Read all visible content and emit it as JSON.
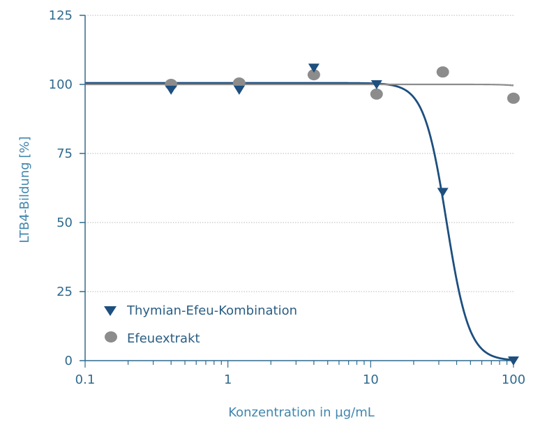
{
  "chart_data": {
    "type": "scatter",
    "x_scale": "log",
    "xlim": [
      0.1,
      100
    ],
    "ylim": [
      0,
      125
    ],
    "x_ticks": [
      0.1,
      1,
      10,
      100
    ],
    "x_tick_labels": [
      "0.1",
      "1",
      "10",
      "100"
    ],
    "y_ticks": [
      0,
      25,
      50,
      75,
      100,
      125
    ],
    "y_tick_labels": [
      "0",
      "25",
      "50",
      "75",
      "100",
      "125"
    ],
    "xlabel": "Konzentration in µg/mL",
    "ylabel": "LTB4-Bildung [%]",
    "grid": "horizontal dotted",
    "legend_position": "bottom-left",
    "series": [
      {
        "name": "Thymian-Efeu-Kombination",
        "marker": "triangle-down",
        "color": "#1d4f7f",
        "points": [
          {
            "x": 0.4,
            "y": 98
          },
          {
            "x": 1.2,
            "y": 98
          },
          {
            "x": 4,
            "y": 106
          },
          {
            "x": 11,
            "y": 100
          },
          {
            "x": 32,
            "y": 61
          },
          {
            "x": 100,
            "y": 0
          }
        ],
        "fit_curve": {
          "top": 100.5,
          "bottom": 0,
          "ic50": 34,
          "hill": 5.5
        }
      },
      {
        "name": "Efeuextrakt",
        "marker": "circle",
        "color": "#8c8c8c",
        "points": [
          {
            "x": 0.4,
            "y": 100
          },
          {
            "x": 1.2,
            "y": 100.5
          },
          {
            "x": 4,
            "y": 103.5
          },
          {
            "x": 11,
            "y": 96.5
          },
          {
            "x": 32,
            "y": 104.5
          },
          {
            "x": 100,
            "y": 95
          }
        ],
        "fit_curve": {
          "top": 100,
          "bottom": 0,
          "ic50": 250,
          "hill": 6
        }
      }
    ]
  },
  "colors": {
    "axis": "#2f6a8f",
    "grid": "#b9b9b9"
  }
}
